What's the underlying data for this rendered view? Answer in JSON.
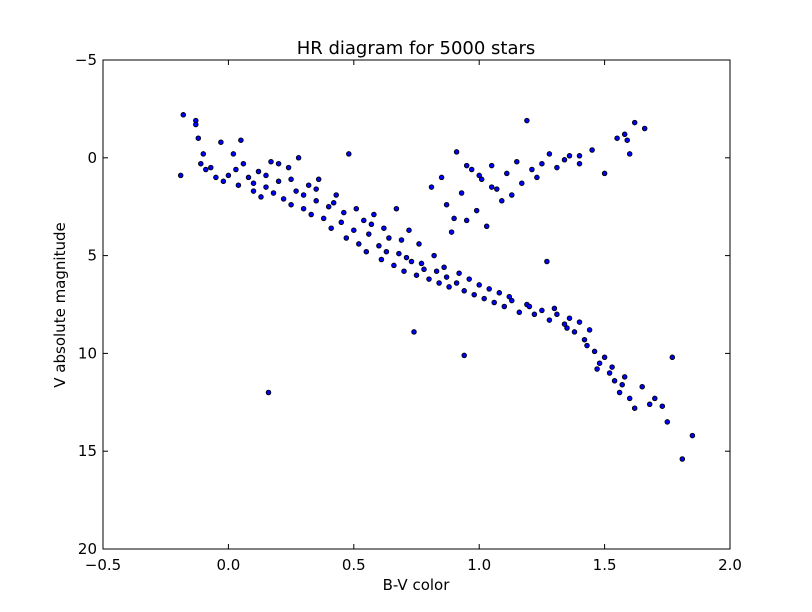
{
  "chart_data": {
    "type": "scatter",
    "title": "HR diagram for 5000 stars",
    "xlabel": "B-V color",
    "ylabel": "V absolute magnitude",
    "xlim": [
      -0.5,
      2.0
    ],
    "ylim": [
      20,
      -5
    ],
    "y_inverted": true,
    "grid": false,
    "legend": "none",
    "marker_color": "#0000ff",
    "marker_edge": "#000000",
    "x_ticks": [
      -0.5,
      0.0,
      0.5,
      1.0,
      1.5,
      2.0
    ],
    "x_tick_labels": [
      "−0.5",
      "0.0",
      "0.5",
      "1.0",
      "1.5",
      "2.0"
    ],
    "y_ticks": [
      -5,
      0,
      5,
      10,
      15,
      20
    ],
    "y_tick_labels": [
      "−5",
      "0",
      "5",
      "10",
      "15",
      "20"
    ],
    "series": [
      {
        "points": [
          [
            -0.19,
            0.9
          ],
          [
            -0.18,
            -2.2
          ],
          [
            -0.13,
            -1.9
          ],
          [
            -0.13,
            -1.7
          ],
          [
            -0.12,
            -1.0
          ],
          [
            -0.11,
            0.3
          ],
          [
            -0.1,
            -0.2
          ],
          [
            -0.09,
            0.6
          ],
          [
            -0.07,
            0.5
          ],
          [
            -0.05,
            1.0
          ],
          [
            -0.03,
            -0.8
          ],
          [
            -0.02,
            1.2
          ],
          [
            0.0,
            0.9
          ],
          [
            0.02,
            -0.2
          ],
          [
            0.03,
            0.6
          ],
          [
            0.04,
            1.4
          ],
          [
            0.05,
            -0.9
          ],
          [
            0.06,
            0.3
          ],
          [
            0.08,
            1.0
          ],
          [
            0.1,
            1.3
          ],
          [
            0.12,
            0.7
          ],
          [
            0.13,
            2.0
          ],
          [
            0.15,
            1.5
          ],
          [
            0.17,
            0.2
          ],
          [
            0.18,
            1.8
          ],
          [
            0.2,
            1.2
          ],
          [
            0.22,
            2.1
          ],
          [
            0.24,
            0.5
          ],
          [
            0.25,
            2.4
          ],
          [
            0.27,
            1.7
          ],
          [
            0.28,
            0.0
          ],
          [
            0.3,
            2.6
          ],
          [
            0.32,
            1.4
          ],
          [
            0.33,
            2.9
          ],
          [
            0.35,
            2.2
          ],
          [
            0.36,
            1.1
          ],
          [
            0.38,
            3.1
          ],
          [
            0.4,
            2.5
          ],
          [
            0.41,
            3.6
          ],
          [
            0.43,
            1.9
          ],
          [
            0.45,
            3.3
          ],
          [
            0.46,
            2.8
          ],
          [
            0.47,
            4.1
          ],
          [
            0.48,
            -0.2
          ],
          [
            0.5,
            3.7
          ],
          [
            0.51,
            2.6
          ],
          [
            0.52,
            4.4
          ],
          [
            0.54,
            3.2
          ],
          [
            0.55,
            4.8
          ],
          [
            0.56,
            3.9
          ],
          [
            0.58,
            2.9
          ],
          [
            0.6,
            4.5
          ],
          [
            0.61,
            5.2
          ],
          [
            0.62,
            3.6
          ],
          [
            0.64,
            4.1
          ],
          [
            0.66,
            5.5
          ],
          [
            0.67,
            2.6
          ],
          [
            0.68,
            4.9
          ],
          [
            0.7,
            5.8
          ],
          [
            0.72,
            3.7
          ],
          [
            0.73,
            5.3
          ],
          [
            0.75,
            6.0
          ],
          [
            0.76,
            4.4
          ],
          [
            0.78,
            5.7
          ],
          [
            0.8,
            6.2
          ],
          [
            0.81,
            1.5
          ],
          [
            0.82,
            5.0
          ],
          [
            0.84,
            6.4
          ],
          [
            0.86,
            5.6
          ],
          [
            0.88,
            6.6
          ],
          [
            0.9,
            3.1
          ],
          [
            0.92,
            5.9
          ],
          [
            0.94,
            6.8
          ],
          [
            0.96,
            6.2
          ],
          [
            0.98,
            7.0
          ],
          [
            1.0,
            6.5
          ],
          [
            1.02,
            7.2
          ],
          [
            1.04,
            6.7
          ],
          [
            1.06,
            7.4
          ],
          [
            1.08,
            6.9
          ],
          [
            1.1,
            7.6
          ],
          [
            1.13,
            7.3
          ],
          [
            1.16,
            7.9
          ],
          [
            1.19,
            7.5
          ],
          [
            1.22,
            8.0
          ],
          [
            1.25,
            7.8
          ],
          [
            1.28,
            8.3
          ],
          [
            1.31,
            8.0
          ],
          [
            1.34,
            8.5
          ],
          [
            1.36,
            8.2
          ],
          [
            1.38,
            8.9
          ],
          [
            1.4,
            8.4
          ],
          [
            1.42,
            9.3
          ],
          [
            1.44,
            8.8
          ],
          [
            1.46,
            9.9
          ],
          [
            1.48,
            10.5
          ],
          [
            1.5,
            10.2
          ],
          [
            1.52,
            11.0
          ],
          [
            1.54,
            11.4
          ],
          [
            1.56,
            12.0
          ],
          [
            1.58,
            11.2
          ],
          [
            1.6,
            12.3
          ],
          [
            1.62,
            12.8
          ],
          [
            1.65,
            11.7
          ],
          [
            1.68,
            12.6
          ],
          [
            1.7,
            12.3
          ],
          [
            1.73,
            12.7
          ],
          [
            1.75,
            13.5
          ],
          [
            1.77,
            10.2
          ],
          [
            1.81,
            15.4
          ],
          [
            1.85,
            14.2
          ],
          [
            0.16,
            12.0
          ],
          [
            0.74,
            8.9
          ],
          [
            0.94,
            10.1
          ],
          [
            1.27,
            5.3
          ],
          [
            0.85,
            1.0
          ],
          [
            0.87,
            2.4
          ],
          [
            0.89,
            3.8
          ],
          [
            0.91,
            -0.3
          ],
          [
            0.93,
            1.8
          ],
          [
            0.95,
            3.2
          ],
          [
            0.97,
            0.6
          ],
          [
            0.99,
            2.7
          ],
          [
            1.01,
            1.1
          ],
          [
            1.03,
            3.5
          ],
          [
            1.05,
            0.4
          ],
          [
            1.07,
            1.6
          ],
          [
            1.09,
            2.2
          ],
          [
            1.11,
            0.8
          ],
          [
            1.13,
            1.9
          ],
          [
            1.15,
            0.2
          ],
          [
            1.17,
            1.3
          ],
          [
            1.19,
            -1.9
          ],
          [
            1.21,
            0.6
          ],
          [
            1.23,
            1.0
          ],
          [
            1.25,
            0.3
          ],
          [
            1.28,
            -0.2
          ],
          [
            1.31,
            0.5
          ],
          [
            1.34,
            0.1
          ],
          [
            1.36,
            -0.1
          ],
          [
            1.4,
            0.3
          ],
          [
            1.45,
            -0.4
          ],
          [
            1.5,
            0.8
          ],
          [
            1.55,
            -1.0
          ],
          [
            1.58,
            -1.2
          ],
          [
            1.59,
            -0.9
          ],
          [
            1.6,
            -0.2
          ],
          [
            1.62,
            -1.8
          ],
          [
            1.66,
            -1.5
          ],
          [
            1.4,
            -0.1
          ],
          [
            0.95,
            0.4
          ],
          [
            1.0,
            0.9
          ],
          [
            1.05,
            1.5
          ],
          [
            0.2,
            0.3
          ],
          [
            0.15,
            0.9
          ],
          [
            0.1,
            1.7
          ],
          [
            0.25,
            1.1
          ],
          [
            0.3,
            1.9
          ],
          [
            0.35,
            1.6
          ],
          [
            0.42,
            2.3
          ],
          [
            0.57,
            3.4
          ],
          [
            0.63,
            4.8
          ],
          [
            0.69,
            4.2
          ],
          [
            0.71,
            5.1
          ],
          [
            0.77,
            5.4
          ],
          [
            0.83,
            5.8
          ],
          [
            0.87,
            6.1
          ],
          [
            0.91,
            6.4
          ],
          [
            1.12,
            7.1
          ],
          [
            1.2,
            7.6
          ],
          [
            1.3,
            7.7
          ],
          [
            1.35,
            8.7
          ],
          [
            1.43,
            9.6
          ],
          [
            1.47,
            10.8
          ],
          [
            1.53,
            10.7
          ],
          [
            1.57,
            11.6
          ]
        ]
      }
    ]
  }
}
